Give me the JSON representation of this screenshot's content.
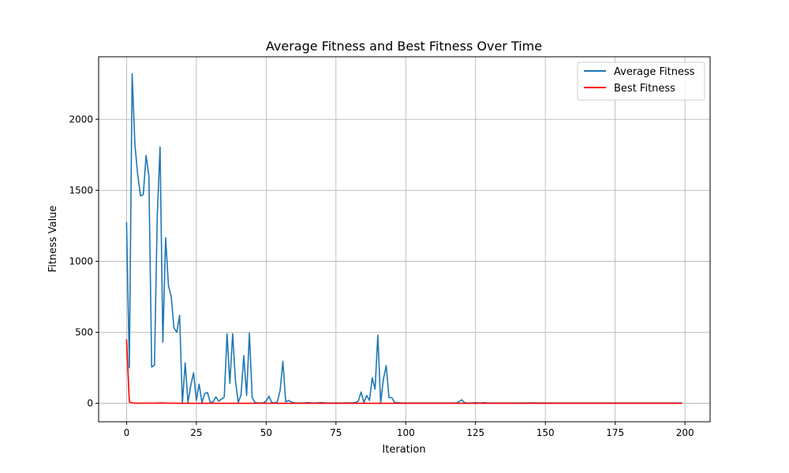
{
  "chart_data": {
    "type": "line",
    "title": "Average Fitness and Best Fitness Over Time",
    "xlabel": "Iteration",
    "ylabel": "Fitness Value",
    "xlim": [
      -10,
      209
    ],
    "ylim": [
      -130,
      2440
    ],
    "xticks": [
      0,
      25,
      50,
      75,
      100,
      125,
      150,
      175,
      200
    ],
    "yticks": [
      0,
      500,
      1000,
      1500,
      2000
    ],
    "grid": true,
    "legend_position": "top-right",
    "series": [
      {
        "name": "Average Fitness",
        "color": "#1f77b4",
        "points": [
          [
            0,
            1275
          ],
          [
            1,
            250
          ],
          [
            2,
            2320
          ],
          [
            3,
            1820
          ],
          [
            4,
            1610
          ],
          [
            5,
            1460
          ],
          [
            6,
            1470
          ],
          [
            7,
            1745
          ],
          [
            8,
            1600
          ],
          [
            9,
            255
          ],
          [
            10,
            270
          ],
          [
            11,
            1320
          ],
          [
            12,
            1805
          ],
          [
            13,
            430
          ],
          [
            14,
            1165
          ],
          [
            15,
            830
          ],
          [
            16,
            750
          ],
          [
            17,
            530
          ],
          [
            18,
            500
          ],
          [
            19,
            620
          ],
          [
            20,
            0
          ],
          [
            21,
            285
          ],
          [
            22,
            5
          ],
          [
            23,
            125
          ],
          [
            24,
            215
          ],
          [
            25,
            20
          ],
          [
            26,
            135
          ],
          [
            27,
            5
          ],
          [
            28,
            70
          ],
          [
            29,
            75
          ],
          [
            30,
            5
          ],
          [
            31,
            10
          ],
          [
            32,
            45
          ],
          [
            33,
            15
          ],
          [
            34,
            30
          ],
          [
            35,
            45
          ],
          [
            36,
            490
          ],
          [
            37,
            140
          ],
          [
            38,
            490
          ],
          [
            39,
            160
          ],
          [
            40,
            5
          ],
          [
            41,
            60
          ],
          [
            42,
            335
          ],
          [
            43,
            55
          ],
          [
            44,
            495
          ],
          [
            45,
            40
          ],
          [
            46,
            5
          ],
          [
            47,
            3
          ],
          [
            48,
            2
          ],
          [
            49,
            3
          ],
          [
            50,
            15
          ],
          [
            51,
            50
          ],
          [
            52,
            5
          ],
          [
            53,
            2
          ],
          [
            54,
            10
          ],
          [
            55,
            90
          ],
          [
            56,
            295
          ],
          [
            57,
            10
          ],
          [
            58,
            20
          ],
          [
            59,
            10
          ],
          [
            60,
            3
          ],
          [
            61,
            2
          ],
          [
            62,
            2
          ],
          [
            63,
            2
          ],
          [
            64,
            3
          ],
          [
            65,
            5
          ],
          [
            66,
            3
          ],
          [
            67,
            2
          ],
          [
            68,
            2
          ],
          [
            69,
            4
          ],
          [
            70,
            5
          ],
          [
            71,
            2
          ],
          [
            72,
            2
          ],
          [
            73,
            2
          ],
          [
            74,
            2
          ],
          [
            75,
            2
          ],
          [
            76,
            2
          ],
          [
            77,
            2
          ],
          [
            78,
            2
          ],
          [
            79,
            3
          ],
          [
            80,
            3
          ],
          [
            81,
            3
          ],
          [
            82,
            5
          ],
          [
            83,
            15
          ],
          [
            84,
            80
          ],
          [
            85,
            5
          ],
          [
            86,
            55
          ],
          [
            87,
            20
          ],
          [
            88,
            180
          ],
          [
            89,
            100
          ],
          [
            90,
            480
          ],
          [
            91,
            0
          ],
          [
            92,
            170
          ],
          [
            93,
            265
          ],
          [
            94,
            40
          ],
          [
            95,
            40
          ],
          [
            96,
            5
          ],
          [
            97,
            5
          ],
          [
            98,
            2
          ],
          [
            99,
            2
          ],
          [
            100,
            2
          ],
          [
            101,
            2
          ],
          [
            102,
            2
          ],
          [
            103,
            2
          ],
          [
            104,
            2
          ],
          [
            105,
            2
          ],
          [
            106,
            2
          ],
          [
            107,
            2
          ],
          [
            108,
            2
          ],
          [
            109,
            2
          ],
          [
            110,
            2
          ],
          [
            111,
            2
          ],
          [
            112,
            2
          ],
          [
            113,
            2
          ],
          [
            114,
            2
          ],
          [
            115,
            2
          ],
          [
            116,
            2
          ],
          [
            117,
            2
          ],
          [
            118,
            2
          ],
          [
            119,
            10
          ],
          [
            120,
            25
          ],
          [
            121,
            5
          ],
          [
            122,
            2
          ],
          [
            123,
            2
          ],
          [
            124,
            3
          ],
          [
            125,
            5
          ],
          [
            126,
            2
          ],
          [
            127,
            2
          ],
          [
            128,
            5
          ],
          [
            129,
            3
          ],
          [
            130,
            2
          ],
          [
            135,
            2
          ],
          [
            140,
            2
          ],
          [
            145,
            3
          ],
          [
            150,
            2
          ],
          [
            155,
            2
          ],
          [
            160,
            2
          ],
          [
            165,
            2
          ],
          [
            170,
            2
          ],
          [
            175,
            2
          ],
          [
            180,
            2
          ],
          [
            185,
            2
          ],
          [
            190,
            2
          ],
          [
            195,
            2
          ],
          [
            199,
            2
          ]
        ]
      },
      {
        "name": "Best Fitness",
        "color": "#ff0000",
        "points": [
          [
            0,
            450
          ],
          [
            1,
            10
          ],
          [
            2,
            2
          ],
          [
            3,
            1
          ],
          [
            5,
            1
          ],
          [
            10,
            1
          ],
          [
            12,
            2
          ],
          [
            15,
            1
          ],
          [
            20,
            0
          ],
          [
            199,
            0
          ]
        ]
      }
    ]
  }
}
